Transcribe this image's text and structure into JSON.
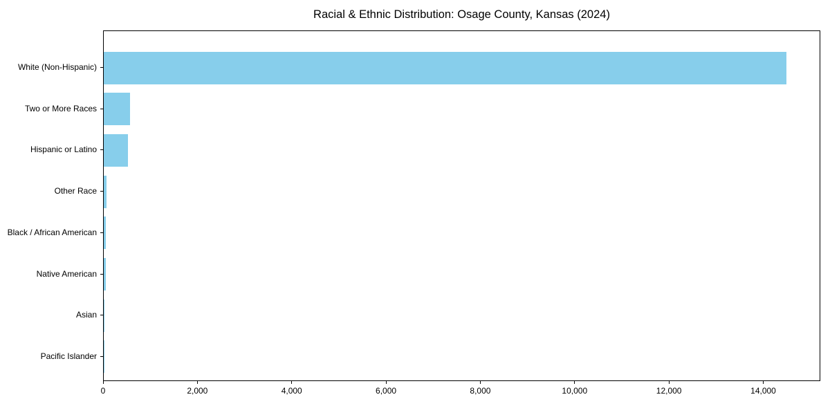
{
  "chart_data": {
    "type": "bar",
    "orientation": "horizontal",
    "title": "Racial & Ethnic Distribution: Osage County, Kansas (2024)",
    "xlabel": "",
    "ylabel": "",
    "categories": [
      "White (Non-Hispanic)",
      "Two or More Races",
      "Hispanic or Latino",
      "Other Race",
      "Black / African American",
      "Native American",
      "Asian",
      "Pacific Islander"
    ],
    "values": [
      14470,
      553,
      518,
      62,
      37,
      44,
      15,
      5
    ],
    "bar_color": "#87CEEB",
    "xlim": [
      0,
      15210
    ],
    "xticks": [
      {
        "value": 0,
        "label": "0"
      },
      {
        "value": 2000,
        "label": "2,000"
      },
      {
        "value": 4000,
        "label": "4,000"
      },
      {
        "value": 6000,
        "label": "6,000"
      },
      {
        "value": 8000,
        "label": "8,000"
      },
      {
        "value": 10000,
        "label": "10,000"
      },
      {
        "value": 12000,
        "label": "12,000"
      },
      {
        "value": 14000,
        "label": "14,000"
      }
    ],
    "grid": false,
    "legend": null,
    "frame": "full-box",
    "text_color": "#000000"
  }
}
